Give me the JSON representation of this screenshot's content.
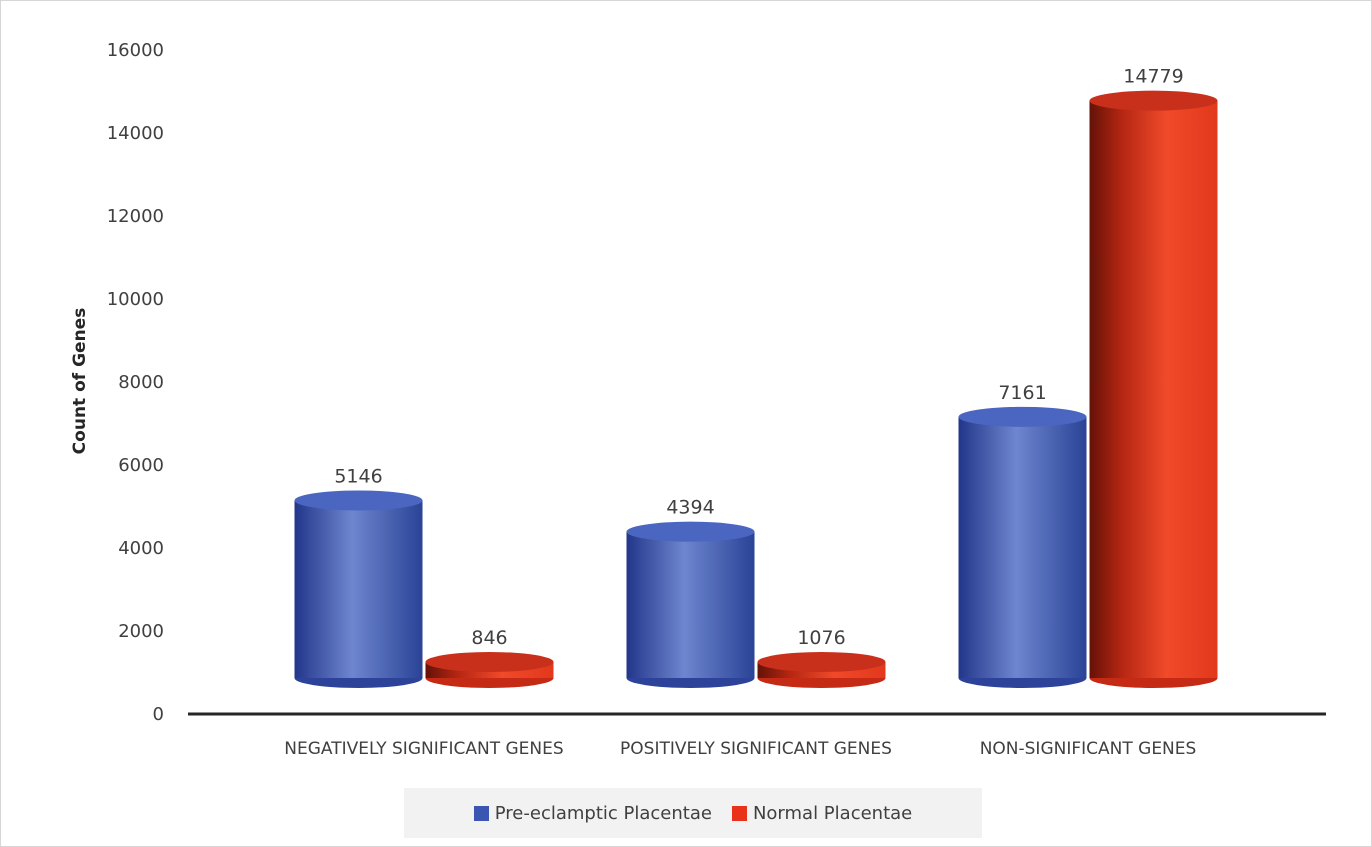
{
  "chart_data": {
    "type": "bar",
    "categories": [
      "NEGATIVELY SIGNIFICANT GENES",
      "POSITIVELY SIGNIFICANT GENES",
      "NON-SIGNIFICANT GENES"
    ],
    "series": [
      {
        "name": "Pre-eclamptic Placentae",
        "values": [
          5146,
          4394,
          7161
        ],
        "color": "#3a56b0"
      },
      {
        "name": "Normal Placentae",
        "values": [
          846,
          1076,
          14779
        ],
        "color": "#e8321a"
      }
    ],
    "ylabel": "Count of Genes",
    "xlabel": "",
    "ylim": [
      0,
      16000
    ],
    "yticks": [
      "0",
      "2000",
      "4000",
      "6000",
      "8000",
      "10000",
      "12000",
      "14000",
      "16000"
    ],
    "grid": false,
    "legend_position": "bottom",
    "style": "3d-cylinder"
  }
}
